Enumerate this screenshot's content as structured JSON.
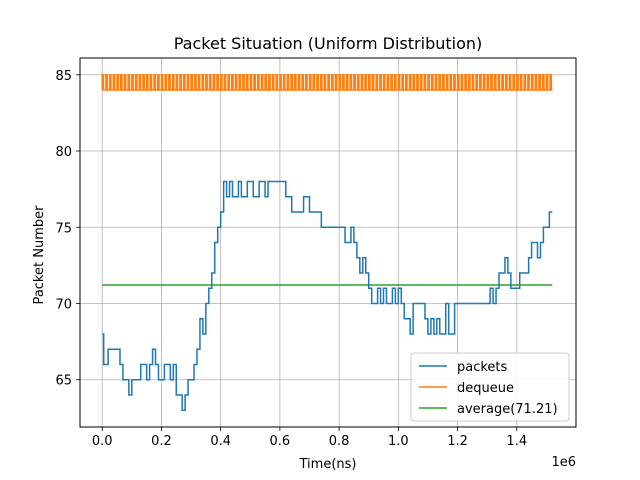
{
  "chart_data": {
    "type": "line",
    "title": "Packet Situation (Uniform Distribution)",
    "xlabel": "Time(ns)",
    "ylabel": "Packet Number",
    "x_offset_label": "1e6",
    "xlim": [
      -0.075,
      1.6
    ],
    "ylim": [
      61.9,
      86.1
    ],
    "xticks": [
      0.0,
      0.2,
      0.4,
      0.6,
      0.8,
      1.0,
      1.2,
      1.4
    ],
    "xtick_labels": [
      "0.0",
      "0.2",
      "0.4",
      "0.6",
      "0.8",
      "1.0",
      "1.2",
      "1.4"
    ],
    "yticks": [
      65,
      70,
      75,
      80,
      85
    ],
    "ytick_labels": [
      "65",
      "70",
      "75",
      "80",
      "85"
    ],
    "grid": true,
    "legend_position": "lower-right",
    "series": [
      {
        "name": "packets",
        "color": "#1f77b4",
        "x": [
          0.0,
          0.005,
          0.01,
          0.02,
          0.04,
          0.06,
          0.07,
          0.09,
          0.1,
          0.12,
          0.13,
          0.15,
          0.16,
          0.17,
          0.18,
          0.19,
          0.2,
          0.21,
          0.22,
          0.23,
          0.24,
          0.25,
          0.26,
          0.27,
          0.28,
          0.29,
          0.3,
          0.31,
          0.32,
          0.33,
          0.34,
          0.35,
          0.36,
          0.37,
          0.38,
          0.39,
          0.4,
          0.41,
          0.42,
          0.43,
          0.44,
          0.45,
          0.46,
          0.47,
          0.48,
          0.49,
          0.5,
          0.51,
          0.52,
          0.53,
          0.54,
          0.55,
          0.56,
          0.57,
          0.58,
          0.59,
          0.6,
          0.62,
          0.64,
          0.66,
          0.68,
          0.7,
          0.72,
          0.74,
          0.76,
          0.78,
          0.8,
          0.82,
          0.84,
          0.85,
          0.86,
          0.87,
          0.88,
          0.89,
          0.9,
          0.91,
          0.92,
          0.93,
          0.94,
          0.95,
          0.96,
          0.97,
          0.98,
          0.99,
          1.0,
          1.01,
          1.02,
          1.03,
          1.04,
          1.05,
          1.06,
          1.07,
          1.08,
          1.09,
          1.1,
          1.11,
          1.12,
          1.13,
          1.14,
          1.15,
          1.16,
          1.17,
          1.18,
          1.19,
          1.2,
          1.21,
          1.22,
          1.23,
          1.24,
          1.25,
          1.26,
          1.27,
          1.28,
          1.29,
          1.3,
          1.31,
          1.32,
          1.33,
          1.34,
          1.35,
          1.36,
          1.37,
          1.38,
          1.39,
          1.4,
          1.41,
          1.42,
          1.43,
          1.44,
          1.45,
          1.46,
          1.47,
          1.48,
          1.49,
          1.5,
          1.51,
          1.52
        ],
        "y": [
          68,
          66,
          66,
          67,
          67,
          66,
          65,
          64,
          65,
          65,
          66,
          65,
          66,
          67,
          66,
          65,
          65,
          66,
          66,
          65,
          66,
          64,
          64,
          63,
          64,
          65,
          65,
          66,
          67,
          69,
          68,
          70,
          71,
          72,
          74,
          75,
          76,
          78,
          77,
          78,
          77,
          77,
          78,
          77,
          77,
          78,
          78,
          77,
          77,
          78,
          78,
          77,
          78,
          78,
          78,
          78,
          78,
          77,
          76,
          76,
          77,
          76,
          76,
          75,
          75,
          75,
          75,
          74,
          75,
          74,
          73,
          72,
          73,
          72,
          71,
          70,
          70,
          71,
          70,
          71,
          70,
          70,
          71,
          70,
          71,
          70,
          69,
          69,
          68,
          70,
          70,
          70,
          70,
          69,
          68,
          69,
          68,
          69,
          68,
          68,
          70,
          68,
          68,
          70,
          70,
          70,
          70,
          70,
          70,
          70,
          70,
          70,
          70,
          70,
          70,
          71,
          70,
          71,
          72,
          72,
          73,
          72,
          71,
          71,
          71,
          72,
          72,
          72,
          73,
          74,
          74,
          73,
          74,
          75,
          75,
          76,
          76
        ]
      },
      {
        "name": "dequeue",
        "color": "#ff7f0e",
        "y_low": 84,
        "y_high": 85,
        "x_start": 0.0,
        "x_end": 1.52,
        "pulse_step": 0.0125
      },
      {
        "name": "average(71.21)",
        "color": "#2ca02c",
        "value": 71.21,
        "x_start": 0.0,
        "x_end": 1.52
      }
    ]
  }
}
